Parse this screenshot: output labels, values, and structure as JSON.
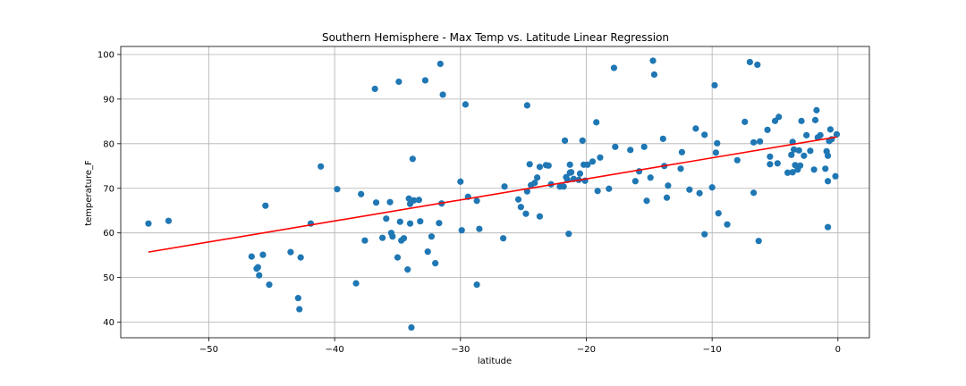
{
  "chart_data": {
    "type": "scatter",
    "title": "Southern Hemisphere - Max Temp vs. Latitude Linear Regression",
    "xlabel": "latitude",
    "ylabel": "temperature_F",
    "xlim": [
      -57,
      2.5
    ],
    "ylim": [
      36.5,
      101.8
    ],
    "xticks": [
      -50,
      -40,
      -30,
      -20,
      -10,
      0
    ],
    "yticks": [
      40,
      50,
      60,
      70,
      80,
      90,
      100
    ],
    "xtick_labels": [
      "−50",
      "−40",
      "−30",
      "−20",
      "−10",
      "0"
    ],
    "ytick_labels": [
      "40",
      "50",
      "60",
      "70",
      "80",
      "90",
      "100"
    ],
    "grid": true,
    "colors": {
      "points": "#1f77b4",
      "regression": "#ff0000",
      "grid": "#b0b0b0"
    },
    "regression_line": {
      "x": [
        -54.8,
        -0.1
      ],
      "y": [
        55.7,
        81.5
      ]
    },
    "points": [
      [
        -54.8,
        62.1
      ],
      [
        -53.2,
        62.7
      ],
      [
        -46.6,
        54.7
      ],
      [
        -46.2,
        52.0
      ],
      [
        -46.1,
        52.3
      ],
      [
        -46.0,
        50.5
      ],
      [
        -45.7,
        55.1
      ],
      [
        -45.5,
        66.1
      ],
      [
        -45.2,
        48.4
      ],
      [
        -43.5,
        55.7
      ],
      [
        -42.9,
        45.4
      ],
      [
        -42.8,
        42.9
      ],
      [
        -42.7,
        54.5
      ],
      [
        -41.9,
        62.1
      ],
      [
        -41.1,
        74.9
      ],
      [
        -39.8,
        69.8
      ],
      [
        -38.3,
        48.7
      ],
      [
        -37.9,
        68.7
      ],
      [
        -37.6,
        58.3
      ],
      [
        -36.8,
        92.3
      ],
      [
        -36.7,
        66.8
      ],
      [
        -36.2,
        58.9
      ],
      [
        -35.9,
        63.2
      ],
      [
        -35.6,
        66.9
      ],
      [
        -35.5,
        60.0
      ],
      [
        -35.4,
        59.2
      ],
      [
        -35.0,
        54.5
      ],
      [
        -34.9,
        93.9
      ],
      [
        -34.8,
        62.5
      ],
      [
        -34.7,
        58.3
      ],
      [
        -34.5,
        58.8
      ],
      [
        -34.2,
        51.8
      ],
      [
        -34.1,
        67.7
      ],
      [
        -34.0,
        62.1
      ],
      [
        -34.0,
        66.5
      ],
      [
        -33.9,
        38.8
      ],
      [
        -33.8,
        76.6
      ],
      [
        -33.7,
        67.3
      ],
      [
        -33.3,
        67.4
      ],
      [
        -33.2,
        62.6
      ],
      [
        -32.8,
        94.2
      ],
      [
        -32.6,
        55.8
      ],
      [
        -32.3,
        59.2
      ],
      [
        -32.0,
        53.2
      ],
      [
        -31.7,
        62.2
      ],
      [
        -31.6,
        97.9
      ],
      [
        -31.5,
        66.6
      ],
      [
        -31.4,
        91.0
      ],
      [
        -30.0,
        71.5
      ],
      [
        -29.9,
        60.6
      ],
      [
        -29.6,
        88.8
      ],
      [
        -29.4,
        68.1
      ],
      [
        -28.7,
        67.2
      ],
      [
        -28.7,
        48.4
      ],
      [
        -28.5,
        60.9
      ],
      [
        -26.6,
        58.8
      ],
      [
        -26.5,
        70.4
      ],
      [
        -25.4,
        67.5
      ],
      [
        -25.2,
        65.8
      ],
      [
        -24.8,
        64.3
      ],
      [
        -24.7,
        69.3
      ],
      [
        -24.7,
        88.6
      ],
      [
        -24.5,
        75.4
      ],
      [
        -24.4,
        70.7
      ],
      [
        -24.1,
        71.2
      ],
      [
        -23.9,
        72.4
      ],
      [
        -23.7,
        63.7
      ],
      [
        -23.7,
        74.8
      ],
      [
        -23.2,
        75.2
      ],
      [
        -23.0,
        75.1
      ],
      [
        -22.8,
        70.9
      ],
      [
        -22.1,
        70.4
      ],
      [
        -21.8,
        70.4
      ],
      [
        -21.7,
        80.7
      ],
      [
        -21.6,
        72.5
      ],
      [
        -21.5,
        71.9
      ],
      [
        -21.4,
        59.8
      ],
      [
        -21.3,
        73.5
      ],
      [
        -21.3,
        75.3
      ],
      [
        -21.2,
        73.6
      ],
      [
        -21.0,
        72.1
      ],
      [
        -20.6,
        71.9
      ],
      [
        -20.5,
        73.3
      ],
      [
        -20.3,
        80.7
      ],
      [
        -20.2,
        75.3
      ],
      [
        -20.1,
        71.7
      ],
      [
        -19.9,
        75.3
      ],
      [
        -19.5,
        76.0
      ],
      [
        -19.2,
        84.8
      ],
      [
        -19.1,
        69.4
      ],
      [
        -18.9,
        76.9
      ],
      [
        -18.2,
        69.9
      ],
      [
        -17.8,
        97.0
      ],
      [
        -17.7,
        79.3
      ],
      [
        -16.5,
        78.6
      ],
      [
        -16.1,
        71.6
      ],
      [
        -15.8,
        73.8
      ],
      [
        -15.4,
        79.3
      ],
      [
        -15.2,
        67.2
      ],
      [
        -14.9,
        72.4
      ],
      [
        -14.7,
        98.6
      ],
      [
        -14.6,
        95.5
      ],
      [
        -13.9,
        81.1
      ],
      [
        -13.8,
        75.0
      ],
      [
        -13.6,
        67.9
      ],
      [
        -13.5,
        70.6
      ],
      [
        -12.5,
        74.4
      ],
      [
        -12.4,
        78.1
      ],
      [
        -11.8,
        69.7
      ],
      [
        -11.3,
        83.4
      ],
      [
        -11.0,
        68.9
      ],
      [
        -10.6,
        59.7
      ],
      [
        -10.6,
        82.0
      ],
      [
        -10.0,
        70.2
      ],
      [
        -9.8,
        93.1
      ],
      [
        -9.7,
        78.0
      ],
      [
        -9.6,
        80.1
      ],
      [
        -9.5,
        64.4
      ],
      [
        -8.8,
        61.9
      ],
      [
        -8.0,
        76.3
      ],
      [
        -7.4,
        84.9
      ],
      [
        -7.0,
        98.3
      ],
      [
        -6.7,
        80.3
      ],
      [
        -6.7,
        69.0
      ],
      [
        -6.4,
        97.7
      ],
      [
        -6.3,
        58.2
      ],
      [
        -6.2,
        80.5
      ],
      [
        -5.6,
        83.1
      ],
      [
        -5.4,
        77.1
      ],
      [
        -5.4,
        75.4
      ],
      [
        -5.0,
        85.1
      ],
      [
        -4.8,
        75.6
      ],
      [
        -4.7,
        86.0
      ],
      [
        -4.0,
        73.5
      ],
      [
        -3.7,
        77.5
      ],
      [
        -3.6,
        73.6
      ],
      [
        -3.6,
        80.4
      ],
      [
        -3.5,
        78.7
      ],
      [
        -3.4,
        75.2
      ],
      [
        -3.2,
        74.2
      ],
      [
        -3.1,
        78.5
      ],
      [
        -3.0,
        75.1
      ],
      [
        -2.9,
        85.1
      ],
      [
        -2.7,
        77.3
      ],
      [
        -2.5,
        81.9
      ],
      [
        -2.2,
        78.4
      ],
      [
        -1.9,
        74.2
      ],
      [
        -1.8,
        85.3
      ],
      [
        -1.7,
        87.5
      ],
      [
        -1.6,
        81.4
      ],
      [
        -1.4,
        81.9
      ],
      [
        -1.0,
        74.4
      ],
      [
        -0.9,
        78.3
      ],
      [
        -0.8,
        61.3
      ],
      [
        -0.8,
        71.6
      ],
      [
        -0.8,
        77.3
      ],
      [
        -0.7,
        80.6
      ],
      [
        -0.6,
        83.2
      ],
      [
        -0.5,
        81.0
      ],
      [
        -0.2,
        72.7
      ],
      [
        -0.1,
        82.1
      ]
    ]
  }
}
